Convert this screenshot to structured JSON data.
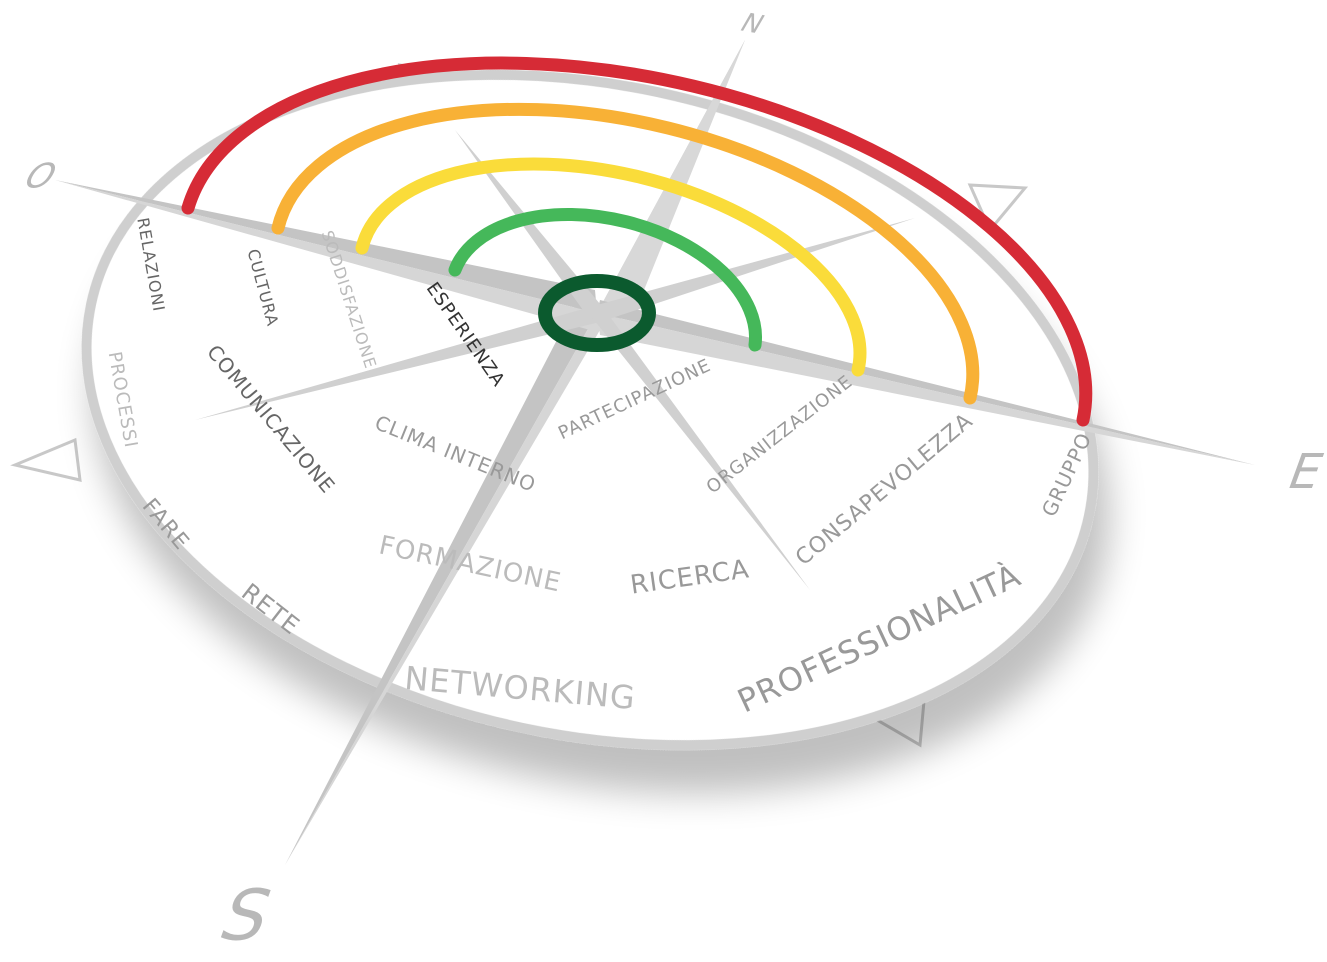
{
  "directions": {
    "north": "N",
    "west": "O",
    "east": "E",
    "south": "S"
  },
  "labels": [
    "RELAZIONI",
    "CULTURA",
    "COMUNICAZIONE",
    "SODDISFAZIONE",
    "ESPERIENZA",
    "PARTECIPAZIONE",
    "CLIMA INTERNO",
    "ORGANIZZAZIONE",
    "PROCESSI",
    "FARE",
    "RETE",
    "FORMAZIONE",
    "RICERCA",
    "CONSAPEVOLEZZA",
    "NETWORKING",
    "PROFESSIONALITÀ",
    "GRUPPO"
  ]
}
